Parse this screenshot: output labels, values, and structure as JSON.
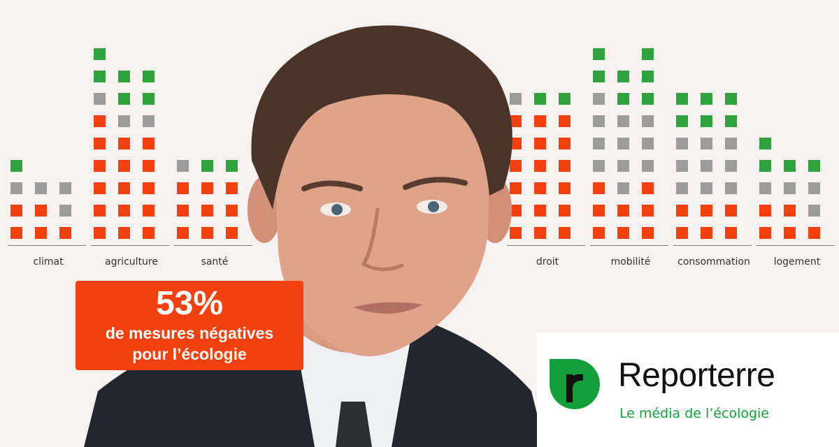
{
  "chart_data": {
    "type": "bar",
    "categories": [
      "climat",
      "agriculture",
      "santé",
      "",
      "",
      "droit",
      "mobilité",
      "consommation",
      "logement"
    ],
    "legend_colors": {
      "red": "#f2400f",
      "gray": "#9c9c9c",
      "green": "#2fa23d"
    },
    "columns": [
      [
        [
          "red",
          "red",
          "gray",
          "green"
        ],
        [
          "red",
          "red",
          "gray"
        ],
        [
          "red",
          "gray",
          "gray"
        ]
      ],
      [
        [
          "red",
          "red",
          "red",
          "red",
          "red",
          "red",
          "gray",
          "green",
          "green"
        ],
        [
          "red",
          "red",
          "red",
          "red",
          "red",
          "gray",
          "green",
          "green"
        ],
        [
          "red",
          "red",
          "red",
          "red",
          "red",
          "gray",
          "green",
          "green"
        ]
      ],
      [
        [
          "red",
          "red",
          "red",
          "gray"
        ],
        [
          "red",
          "red",
          "red",
          "green"
        ],
        [
          "red",
          "red",
          "red",
          "green"
        ]
      ],
      [],
      [],
      [
        [
          "red",
          "red",
          "red",
          "red",
          "red",
          "red",
          "gray"
        ],
        [
          "red",
          "red",
          "red",
          "red",
          "red",
          "red",
          "green"
        ],
        [
          "red",
          "red",
          "red",
          "red",
          "red",
          "red",
          "green"
        ]
      ],
      [
        [
          "red",
          "red",
          "red",
          "gray",
          "gray",
          "gray",
          "gray",
          "green",
          "green"
        ],
        [
          "red",
          "red",
          "gray",
          "gray",
          "gray",
          "gray",
          "green",
          "green"
        ],
        [
          "red",
          "red",
          "red",
          "gray",
          "gray",
          "gray",
          "green",
          "green",
          "green"
        ]
      ],
      [
        [
          "red",
          "red",
          "gray",
          "gray",
          "gray",
          "green",
          "green"
        ],
        [
          "red",
          "red",
          "gray",
          "gray",
          "gray",
          "green",
          "green"
        ],
        [
          "red",
          "red",
          "gray",
          "gray",
          "gray",
          "green",
          "green"
        ]
      ],
      [
        [
          "red",
          "red",
          "gray",
          "green",
          "green"
        ],
        [
          "red",
          "red",
          "gray",
          "green"
        ],
        [
          "red",
          "gray",
          "gray",
          "green"
        ]
      ]
    ]
  },
  "stat": {
    "percent": "53%",
    "line1": "de mesures négatives",
    "line2": "pour l’écologie"
  },
  "brand": {
    "name": "Reporterre",
    "tagline": "Le média de l’écologie",
    "color": "#139f3b",
    "logo_icon": "r-leaf-logo-icon"
  }
}
